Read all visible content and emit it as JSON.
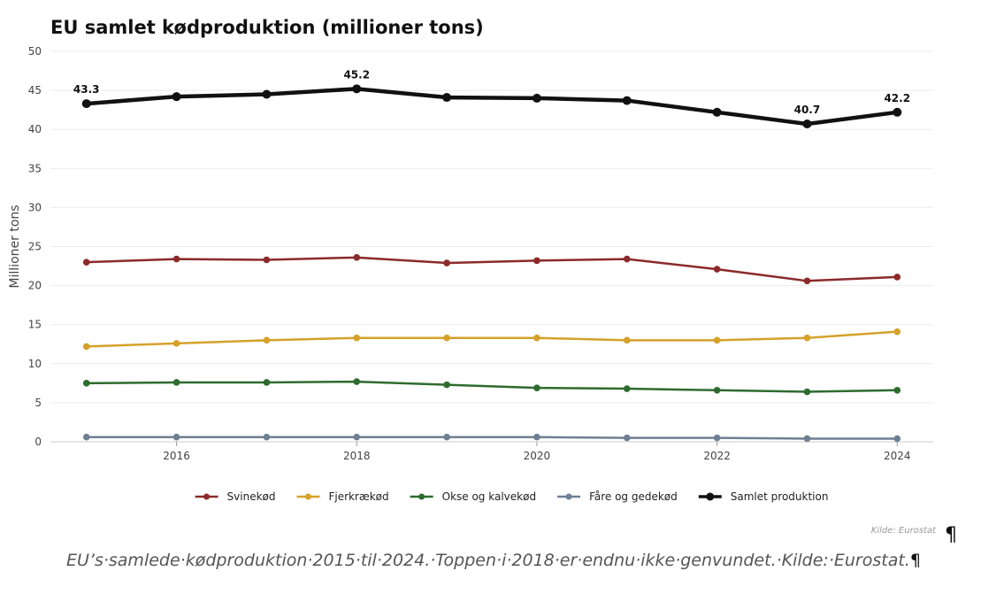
{
  "chart_data": {
    "type": "line",
    "title": "EU samlet kødproduktion (millioner tons)",
    "xlabel": "",
    "ylabel": "Millioner tons",
    "xlim": [
      2014.6,
      2024.4
    ],
    "ylim": [
      0,
      50
    ],
    "yticks": [
      0,
      5,
      10,
      15,
      20,
      25,
      30,
      35,
      40,
      45,
      50
    ],
    "xticks": [
      2016,
      2018,
      2020,
      2022,
      2024
    ],
    "x": [
      2015,
      2016,
      2017,
      2018,
      2019,
      2020,
      2021,
      2022,
      2023,
      2024
    ],
    "series": [
      {
        "name": "Svinekød",
        "color": "#8b2a2a",
        "width": 2.5,
        "values": [
          23.0,
          23.4,
          23.3,
          23.6,
          22.9,
          23.2,
          23.4,
          22.1,
          20.6,
          21.1
        ]
      },
      {
        "name": "Fjerkrækød",
        "color": "#d4a12a",
        "width": 2.5,
        "values": [
          12.2,
          12.6,
          13.0,
          13.3,
          13.3,
          13.3,
          13.0,
          13.0,
          13.3,
          14.1
        ]
      },
      {
        "name": "Okse og kalvekød",
        "color": "#2e6b2e",
        "width": 2.5,
        "values": [
          7.5,
          7.6,
          7.6,
          7.7,
          7.3,
          6.9,
          6.8,
          6.6,
          6.4,
          6.6
        ]
      },
      {
        "name": "Fåre og gedekød",
        "color": "#6f7f92",
        "width": 2.5,
        "values": [
          0.6,
          0.6,
          0.6,
          0.6,
          0.6,
          0.6,
          0.5,
          0.5,
          0.4,
          0.4
        ]
      },
      {
        "name": "Samlet produktion",
        "color": "#111111",
        "width": 4.5,
        "values": [
          43.3,
          44.2,
          44.5,
          45.2,
          44.1,
          44.0,
          43.7,
          42.2,
          40.7,
          42.2
        ]
      }
    ],
    "annotations": [
      {
        "x": 2015,
        "y": 43.3,
        "text": "43.3"
      },
      {
        "x": 2018,
        "y": 45.2,
        "text": "45.2"
      },
      {
        "x": 2023,
        "y": 40.7,
        "text": "40.7"
      },
      {
        "x": 2024,
        "y": 42.2,
        "text": "42.2"
      }
    ],
    "legend": "bottom",
    "grid": true,
    "source": "Kilde: Eurostat"
  },
  "caption": {
    "text": "EU’s·samlede·kødproduktion·2015·til·2024.·Toppen·i·2018·er·endnu·ikke·genvundet.·Kilde:·Eurostat.",
    "mark": "¶"
  },
  "pilcrow_top": "¶"
}
